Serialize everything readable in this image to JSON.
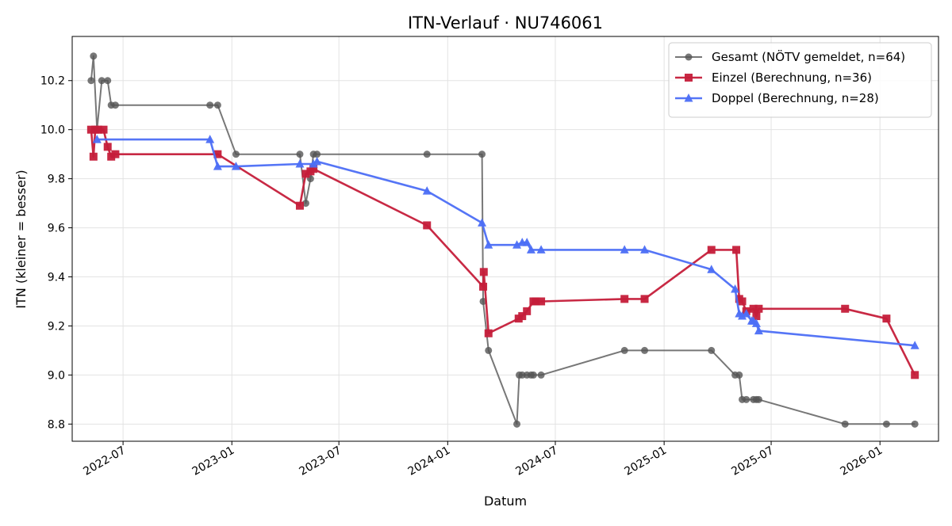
{
  "chart_data": {
    "type": "line",
    "title": "ITN-Verlauf · NU746061",
    "xlabel": "Datum",
    "ylabel": "ITN  (kleiner = besser)",
    "xlim": [
      "2022-04-06",
      "2026-04-10"
    ],
    "ylim": [
      8.73,
      10.38
    ],
    "yticks": [
      8.8,
      9.0,
      9.2,
      9.4,
      9.6,
      9.8,
      10.0,
      10.2
    ],
    "ytick_labels": [
      "8.8",
      "9.0",
      "9.2",
      "9.4",
      "9.6",
      "9.8",
      "10.0",
      "10.2"
    ],
    "xticks": [
      "2022-07-01",
      "2023-01-01",
      "2023-07-01",
      "2024-01-01",
      "2024-07-01",
      "2025-01-01",
      "2025-07-01",
      "2026-01-01"
    ],
    "xtick_labels": [
      "2022-07",
      "2023-01",
      "2023-07",
      "2024-01",
      "2024-07",
      "2025-01",
      "2025-07",
      "2026-01"
    ],
    "grid": true,
    "legend_position": "top-right",
    "series": [
      {
        "name": "Gesamt (NÖTV gemeldet, n=64)",
        "color": "#555555",
        "marker": "circle",
        "points": [
          {
            "x": "2022-05-08",
            "y": 10.2
          },
          {
            "x": "2022-05-12",
            "y": 10.3
          },
          {
            "x": "2022-05-18",
            "y": 10.0
          },
          {
            "x": "2022-05-26",
            "y": 10.2
          },
          {
            "x": "2022-06-05",
            "y": 10.2
          },
          {
            "x": "2022-06-11",
            "y": 10.1
          },
          {
            "x": "2022-06-18",
            "y": 10.1
          },
          {
            "x": "2022-11-25",
            "y": 10.1
          },
          {
            "x": "2022-12-08",
            "y": 10.1
          },
          {
            "x": "2023-01-08",
            "y": 9.9
          },
          {
            "x": "2023-04-26",
            "y": 9.9
          },
          {
            "x": "2023-05-06",
            "y": 9.7
          },
          {
            "x": "2023-05-14",
            "y": 9.8
          },
          {
            "x": "2023-05-19",
            "y": 9.9
          },
          {
            "x": "2023-05-25",
            "y": 9.9
          },
          {
            "x": "2023-11-27",
            "y": 9.9
          },
          {
            "x": "2024-02-28",
            "y": 9.9
          },
          {
            "x": "2024-03-01",
            "y": 9.3
          },
          {
            "x": "2024-03-10",
            "y": 9.1
          },
          {
            "x": "2024-04-27",
            "y": 8.8
          },
          {
            "x": "2024-05-01",
            "y": 9.0
          },
          {
            "x": "2024-05-06",
            "y": 9.0
          },
          {
            "x": "2024-05-14",
            "y": 9.0
          },
          {
            "x": "2024-05-21",
            "y": 9.0
          },
          {
            "x": "2024-05-25",
            "y": 9.0
          },
          {
            "x": "2024-06-07",
            "y": 9.0
          },
          {
            "x": "2024-10-26",
            "y": 9.1
          },
          {
            "x": "2024-11-29",
            "y": 9.1
          },
          {
            "x": "2025-03-22",
            "y": 9.1
          },
          {
            "x": "2025-05-01",
            "y": 9.0
          },
          {
            "x": "2025-05-08",
            "y": 9.0
          },
          {
            "x": "2025-05-13",
            "y": 8.9
          },
          {
            "x": "2025-05-20",
            "y": 8.9
          },
          {
            "x": "2025-06-01",
            "y": 8.9
          },
          {
            "x": "2025-06-06",
            "y": 8.9
          },
          {
            "x": "2025-06-10",
            "y": 8.9
          },
          {
            "x": "2025-11-03",
            "y": 8.8
          },
          {
            "x": "2026-01-12",
            "y": 8.8
          },
          {
            "x": "2026-03-01",
            "y": 8.8
          }
        ]
      },
      {
        "name": "Einzel (Berechnung, n=36)",
        "color": "#c51e3a",
        "marker": "square",
        "points": [
          {
            "x": "2022-05-08",
            "y": 10.0
          },
          {
            "x": "2022-05-12",
            "y": 9.89
          },
          {
            "x": "2022-05-15",
            "y": 10.0
          },
          {
            "x": "2022-05-20",
            "y": 10.0
          },
          {
            "x": "2022-05-29",
            "y": 10.0
          },
          {
            "x": "2022-06-05",
            "y": 9.93
          },
          {
            "x": "2022-06-11",
            "y": 9.89
          },
          {
            "x": "2022-06-18",
            "y": 9.9
          },
          {
            "x": "2022-12-08",
            "y": 9.9
          },
          {
            "x": "2023-04-26",
            "y": 9.69
          },
          {
            "x": "2023-05-06",
            "y": 9.82
          },
          {
            "x": "2023-05-14",
            "y": 9.83
          },
          {
            "x": "2023-05-19",
            "y": 9.84
          },
          {
            "x": "2023-11-27",
            "y": 9.61
          },
          {
            "x": "2024-03-01",
            "y": 9.36
          },
          {
            "x": "2024-03-02",
            "y": 9.42
          },
          {
            "x": "2024-03-10",
            "y": 9.17
          },
          {
            "x": "2024-04-30",
            "y": 9.23
          },
          {
            "x": "2024-05-06",
            "y": 9.24
          },
          {
            "x": "2024-05-14",
            "y": 9.26
          },
          {
            "x": "2024-05-25",
            "y": 9.3
          },
          {
            "x": "2024-05-29",
            "y": 9.3
          },
          {
            "x": "2024-06-07",
            "y": 9.3
          },
          {
            "x": "2024-10-26",
            "y": 9.31
          },
          {
            "x": "2024-11-29",
            "y": 9.31
          },
          {
            "x": "2025-03-22",
            "y": 9.51
          },
          {
            "x": "2025-05-03",
            "y": 9.51
          },
          {
            "x": "2025-05-08",
            "y": 9.31
          },
          {
            "x": "2025-05-13",
            "y": 9.3
          },
          {
            "x": "2025-05-20",
            "y": 9.26
          },
          {
            "x": "2025-06-01",
            "y": 9.27
          },
          {
            "x": "2025-06-06",
            "y": 9.24
          },
          {
            "x": "2025-06-10",
            "y": 9.27
          },
          {
            "x": "2025-11-03",
            "y": 9.27
          },
          {
            "x": "2026-01-12",
            "y": 9.23
          },
          {
            "x": "2026-03-01",
            "y": 9.0
          }
        ]
      },
      {
        "name": "Doppel (Berechnung, n=28)",
        "color": "#4c6ef5",
        "marker": "triangle",
        "points": [
          {
            "x": "2022-05-18",
            "y": 9.96
          },
          {
            "x": "2022-11-25",
            "y": 9.96
          },
          {
            "x": "2022-12-08",
            "y": 9.85
          },
          {
            "x": "2023-01-08",
            "y": 9.85
          },
          {
            "x": "2023-04-26",
            "y": 9.86
          },
          {
            "x": "2023-05-19",
            "y": 9.86
          },
          {
            "x": "2023-05-25",
            "y": 9.87
          },
          {
            "x": "2023-11-27",
            "y": 9.75
          },
          {
            "x": "2024-02-28",
            "y": 9.62
          },
          {
            "x": "2024-03-10",
            "y": 9.53
          },
          {
            "x": "2024-04-27",
            "y": 9.53
          },
          {
            "x": "2024-05-06",
            "y": 9.54
          },
          {
            "x": "2024-05-14",
            "y": 9.54
          },
          {
            "x": "2024-05-21",
            "y": 9.51
          },
          {
            "x": "2024-06-07",
            "y": 9.51
          },
          {
            "x": "2024-10-26",
            "y": 9.51
          },
          {
            "x": "2024-11-29",
            "y": 9.51
          },
          {
            "x": "2025-03-22",
            "y": 9.43
          },
          {
            "x": "2025-05-01",
            "y": 9.35
          },
          {
            "x": "2025-05-08",
            "y": 9.25
          },
          {
            "x": "2025-05-13",
            "y": 9.24
          },
          {
            "x": "2025-05-20",
            "y": 9.25
          },
          {
            "x": "2025-05-29",
            "y": 9.22
          },
          {
            "x": "2025-06-01",
            "y": 9.22
          },
          {
            "x": "2025-06-06",
            "y": 9.21
          },
          {
            "x": "2025-06-10",
            "y": 9.18
          },
          {
            "x": "2026-03-01",
            "y": 9.12
          }
        ]
      }
    ]
  }
}
